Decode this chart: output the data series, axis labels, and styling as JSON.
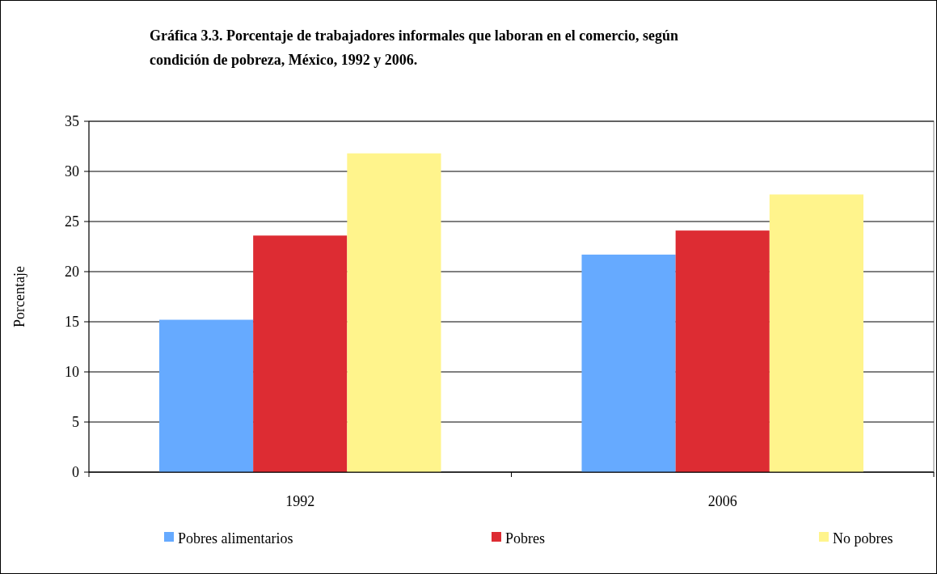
{
  "chart_data": {
    "type": "bar",
    "title": "Gráfica 3.3. Porcentaje de trabajadores informales que laboran en el comercio, según condición de pobreza, México, 1992 y 2006.",
    "ylabel": "Porcentaje",
    "categories": [
      "1992",
      "2006"
    ],
    "series": [
      {
        "name": "Pobres alimentarios",
        "color": "#66aaff",
        "values": [
          15.2,
          21.7
        ]
      },
      {
        "name": "Pobres",
        "color": "#dd2c33",
        "values": [
          23.6,
          24.1
        ]
      },
      {
        "name": "No pobres",
        "color": "#fff48c",
        "values": [
          31.8,
          27.7
        ]
      }
    ],
    "ylim": [
      0,
      35
    ],
    "yticks": [
      0,
      5,
      10,
      15,
      20,
      25,
      30,
      35
    ],
    "grid": "y",
    "legend": "bottom"
  }
}
